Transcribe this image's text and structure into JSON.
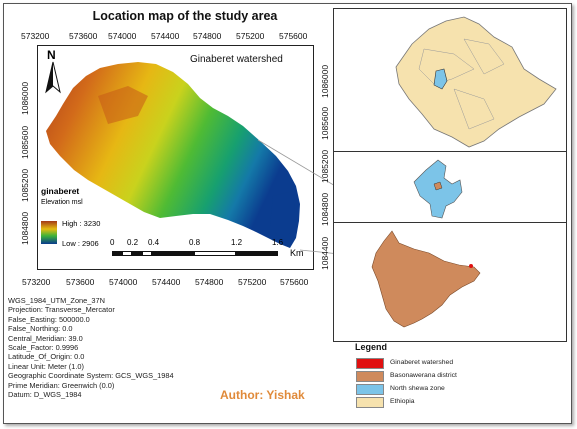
{
  "map_title": "Location map of the study area",
  "watershed_label": "Ginaberet watershed",
  "x_ticks": [
    "573200",
    "573600",
    "574000",
    "574400",
    "574800",
    "575200",
    "575600"
  ],
  "y_ticks": [
    "1086000",
    "1085600",
    "1085200",
    "1084800"
  ],
  "right_y_ticks": [
    "1086000",
    "1085600",
    "1085200",
    "1084800",
    "1084400"
  ],
  "north_label": "N",
  "elevation_legend": {
    "layer": "ginaberet",
    "field": "Elevation msl",
    "high": "High : 3230",
    "low": "Low : 2906",
    "colors": [
      "#a33a17",
      "#e5bd11",
      "#3bb23a",
      "#0a3a8e"
    ]
  },
  "scale_bar": {
    "labels": [
      "0",
      "0.2",
      "0.4",
      "0.8",
      "1.2",
      "1.6"
    ],
    "unit": "Km"
  },
  "projection_info": [
    "WGS_1984_UTM_Zone_37N",
    "Projection: Transverse_Mercator",
    "False_Easting: 500000.0",
    "False_Northing: 0.0",
    "Central_Meridian: 39.0",
    "Scale_Factor: 0.9996",
    "Latitude_Of_Origin: 0.0",
    "Linear Unit: Meter (1.0)",
    "Geographic Coordinate System: GCS_WGS_1984",
    "Prime Meridian: Greenwich (0.0)",
    "Datum: D_WGS_1984"
  ],
  "legend": {
    "title": "Legend",
    "items": [
      {
        "label": "Ginaberet watershed",
        "color": "#e01010"
      },
      {
        "label": "Basonawerana district",
        "color": "#cf8a5c"
      },
      {
        "label": "North shewa zone",
        "color": "#7cc4e8"
      },
      {
        "label": "Ethiopia",
        "color": "#f6e2ae"
      }
    ]
  },
  "author": "Author: Yishak"
}
